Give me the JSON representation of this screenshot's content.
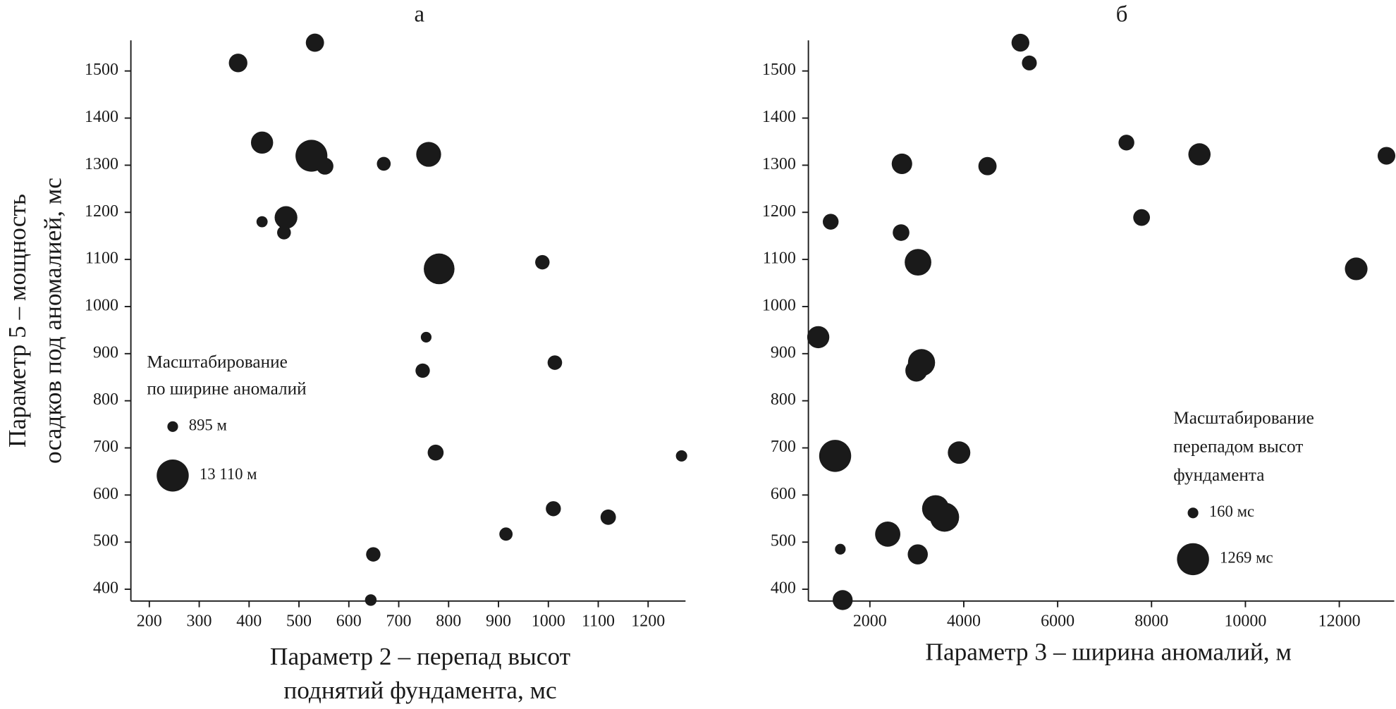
{
  "chart_data": [
    {
      "type": "bubble",
      "title": "а",
      "x_label": [
        "Параметр 2 – перепад высот",
        "поднятий фундамента, мс"
      ],
      "y_label": [
        "Параметр 5 – мощность",
        "осадков под аномалией, мс"
      ],
      "xlim": [
        163,
        1275
      ],
      "ylim": [
        375,
        1565
      ],
      "xticks": [
        200,
        300,
        400,
        500,
        600,
        700,
        800,
        900,
        1000,
        1100,
        1200
      ],
      "yticks": [
        400,
        500,
        600,
        700,
        800,
        900,
        1000,
        1100,
        1200,
        1300,
        1400,
        1500
      ],
      "x": [
        378,
        532,
        426,
        525,
        552,
        670,
        760,
        426,
        474,
        470,
        781,
        988,
        755,
        748,
        1013,
        774,
        1267,
        1010,
        1120,
        915,
        649,
        644
      ],
      "series": [
        {
          "color": "#1a1a1a",
          "values": [
            1517,
            1560,
            1348,
            1320,
            1298,
            1303,
            1323,
            1180,
            1189,
            1157,
            1080,
            1094,
            935,
            864,
            881,
            690,
            683,
            571,
            553,
            517,
            474,
            377
          ],
          "sizes": [
            5397,
            5207,
            7465,
            13005,
            4505,
            2683,
            9021,
            1165,
            7788,
            2664,
            12360,
            3025,
            900,
            2990,
            3100,
            3900,
            1260,
            3400,
            3590,
            2380,
            3020,
            1420
          ]
        }
      ],
      "legend": {
        "title": [
          "Масштабирование",
          "по ширине аномалий"
        ],
        "items": [
          {
            "value": 895,
            "label": "895 м"
          },
          {
            "value": 13110,
            "label": "13 110 м"
          }
        ]
      }
    },
    {
      "type": "bubble",
      "title": "б",
      "x_label": [
        "Параметр 3 – ширина аномалий, м"
      ],
      "xlim": [
        690,
        13170
      ],
      "ylim": [
        375,
        1565
      ],
      "xticks": [
        2000,
        4000,
        6000,
        8000,
        10000,
        12000
      ],
      "yticks": [
        400,
        500,
        600,
        700,
        800,
        900,
        1000,
        1100,
        1200,
        1300,
        1400,
        1500
      ],
      "x": [
        5397,
        5207,
        7465,
        13005,
        4505,
        2683,
        9021,
        1165,
        7788,
        2664,
        12360,
        3025,
        900,
        2990,
        3100,
        3900,
        1260,
        3400,
        3590,
        2380,
        3020,
        1420,
        1370
      ],
      "series": [
        {
          "color": "#1a1a1a",
          "values": [
            1517,
            1560,
            1348,
            1320,
            1298,
            1303,
            1323,
            1180,
            1189,
            1157,
            1080,
            1094,
            935,
            864,
            881,
            690,
            683,
            571,
            553,
            517,
            474,
            377,
            485
          ],
          "sizes": [
            378,
            532,
            426,
            525,
            552,
            670,
            760,
            426,
            474,
            470,
            781,
            988,
            755,
            748,
            1013,
            774,
            1267,
            1010,
            1120,
            915,
            649,
            644,
            160
          ]
        }
      ],
      "legend": {
        "title": [
          "Масштабирование",
          "перепадом высот",
          "фундамента"
        ],
        "items": [
          {
            "value": 160,
            "label": "160 мс"
          },
          {
            "value": 1269,
            "label": "1269 мс"
          }
        ]
      }
    }
  ]
}
